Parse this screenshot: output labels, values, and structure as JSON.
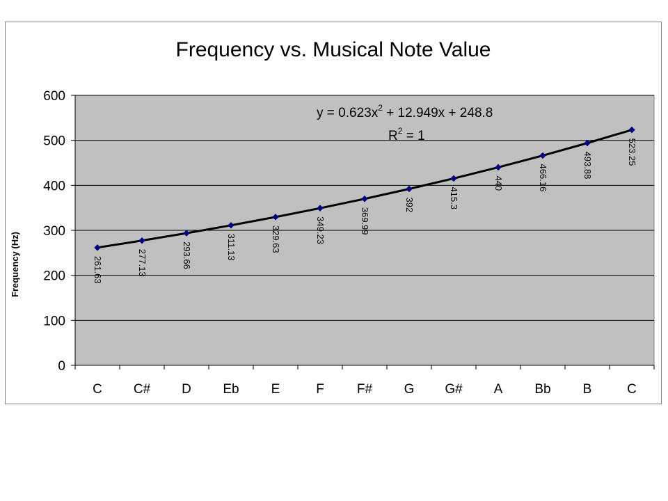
{
  "chart_data": {
    "type": "line",
    "title": "Frequency vs. Musical Note Value",
    "xlabel": "",
    "ylabel": "Frequency (Hz)",
    "categories": [
      "C",
      "C#",
      "D",
      "Eb",
      "E",
      "F",
      "F#",
      "G",
      "G#",
      "A",
      "Bb",
      "B",
      "C"
    ],
    "series": [
      {
        "values": [
          261.63,
          277.13,
          293.66,
          311.13,
          329.63,
          349.23,
          369.99,
          392,
          415.3,
          440,
          466.16,
          493.88,
          523.25
        ],
        "labels": [
          "261.63",
          "277.13",
          "293.66",
          "311.13",
          "329.63",
          "349.23",
          "369.99",
          "392",
          "415.3",
          "440",
          "466.16",
          "493.88",
          "523.25"
        ]
      }
    ],
    "ylim": [
      0,
      600
    ],
    "yticks": [
      0,
      100,
      200,
      300,
      400,
      500,
      600
    ],
    "grid": true,
    "legend": "none",
    "trendline": {
      "type": "polynomial",
      "eq_prefix": "y = 0.623x",
      "eq_exp": "2",
      "eq_suffix": " + 12.949x + 248.8",
      "r2_prefix": "R",
      "r2_exp": "2",
      "r2_suffix": " = 1"
    },
    "colors": {
      "plot_bg": "#c0c0c0",
      "line": "#000000",
      "marker": "#000080",
      "grid": "#000000"
    }
  }
}
